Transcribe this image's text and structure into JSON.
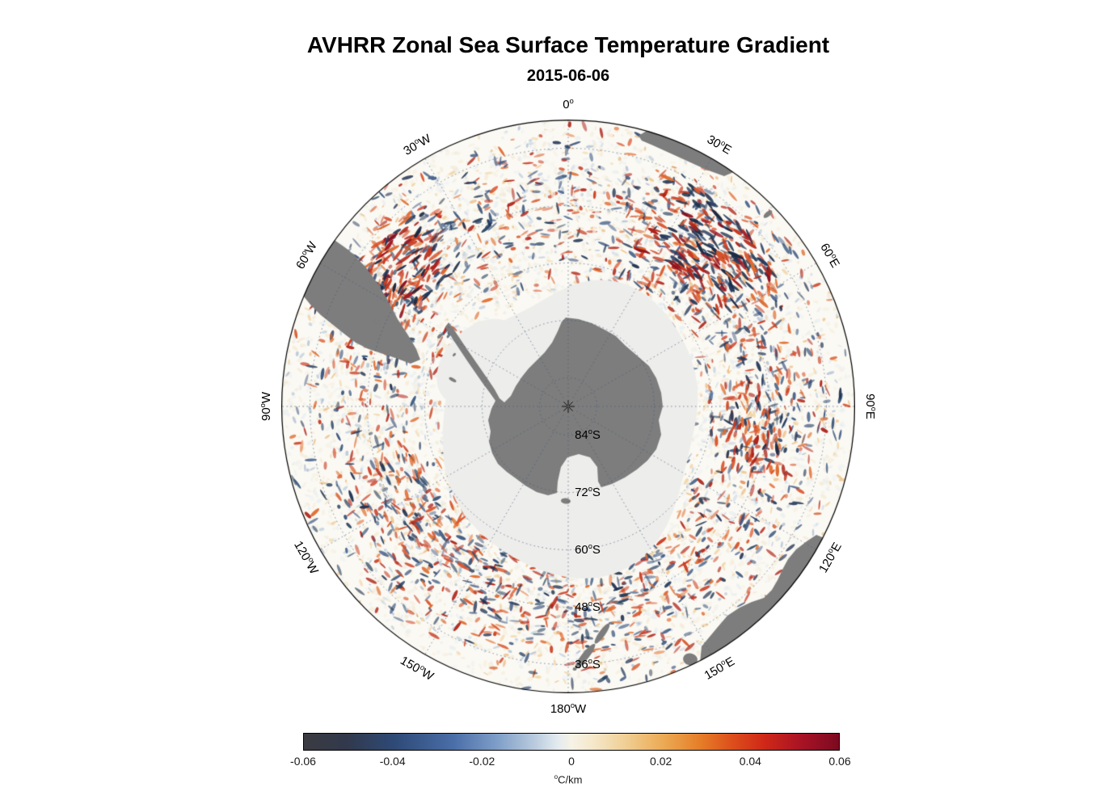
{
  "figure": {
    "title": "AVHRR Zonal Sea Surface Temperature Gradient",
    "subtitle": "2015-06-06"
  },
  "chart_data": {
    "type": "heatmap",
    "projection": "south-polar-stereographic",
    "title": "AVHRR Zonal Sea Surface Temperature Gradient",
    "date": "2015-06-06",
    "variable": "zonal sea surface temperature gradient",
    "units": "°C/km",
    "outer_latitude": "30°S",
    "meridian_ticks": [
      {
        "label": "0°",
        "az": 0
      },
      {
        "label": "30°E",
        "az": 30
      },
      {
        "label": "60°E",
        "az": 60
      },
      {
        "label": "90°E",
        "az": 90
      },
      {
        "label": "120°E",
        "az": 120
      },
      {
        "label": "150°E",
        "az": 150
      },
      {
        "label": "180°W",
        "az": 180
      },
      {
        "label": "150°W",
        "az": 210
      },
      {
        "label": "120°W",
        "az": 240
      },
      {
        "label": "90°W",
        "az": 270
      },
      {
        "label": "60°W",
        "az": 300
      },
      {
        "label": "30°W",
        "az": 330
      }
    ],
    "parallel_ticks": [
      {
        "label": "84°S",
        "lat": -84
      },
      {
        "label": "72°S",
        "lat": -72
      },
      {
        "label": "60°S",
        "lat": -60
      },
      {
        "label": "48°S",
        "lat": -48
      },
      {
        "label": "36°S",
        "lat": -36
      }
    ],
    "colorbar": {
      "min": -0.06,
      "max": 0.06,
      "ticks": [
        "-0.06",
        "-0.04",
        "-0.02",
        "0",
        "0.02",
        "0.04",
        "0.06"
      ],
      "label": "°C/km",
      "stops": [
        {
          "pos": 0,
          "color": "#3b3b41"
        },
        {
          "pos": 0.08,
          "color": "#31394c"
        },
        {
          "pos": 0.17,
          "color": "#2e4a77"
        },
        {
          "pos": 0.28,
          "color": "#4a6ea8"
        },
        {
          "pos": 0.36,
          "color": "#7e9ec8"
        },
        {
          "pos": 0.43,
          "color": "#b8cadd"
        },
        {
          "pos": 0.475,
          "color": "#e4ebef"
        },
        {
          "pos": 0.5,
          "color": "#f6f2e6"
        },
        {
          "pos": 0.54,
          "color": "#f5e8cb"
        },
        {
          "pos": 0.6,
          "color": "#f0cf95"
        },
        {
          "pos": 0.67,
          "color": "#ecab55"
        },
        {
          "pos": 0.74,
          "color": "#e67e28"
        },
        {
          "pos": 0.8,
          "color": "#dd4f1c"
        },
        {
          "pos": 0.86,
          "color": "#d02818"
        },
        {
          "pos": 0.93,
          "color": "#a81325"
        },
        {
          "pos": 1,
          "color": "#7c0a20"
        }
      ]
    },
    "colors": {
      "ocean": "#fbf9f3",
      "ice": "#ededeb",
      "land": "#7d7d7d",
      "graticule": "rgba(70,90,120,0.65)",
      "speckle": {
        "pale": [
          "#edf1f5",
          "#f5ecd9",
          "#e3ebf1",
          "#f7efdf",
          "#eef0ea",
          "#f3e6cf"
        ],
        "medium_warm": [
          "#ecc27e",
          "#e8a95b",
          "#f0d09a"
        ],
        "medium_cool": [
          "#aabfd6",
          "#8fa9c7",
          "#c6d4e2"
        ],
        "strong_warm": [
          "#d9542a",
          "#c93a20",
          "#b02318",
          "#e06b2e"
        ],
        "strong_cool": [
          "#33507a",
          "#27405f",
          "#1e3050",
          "#48618a"
        ],
        "dark_warm": [
          "#a01722",
          "#8c1020"
        ],
        "dark_cool": [
          "#1b2a45",
          "#243a5e"
        ]
      }
    }
  }
}
